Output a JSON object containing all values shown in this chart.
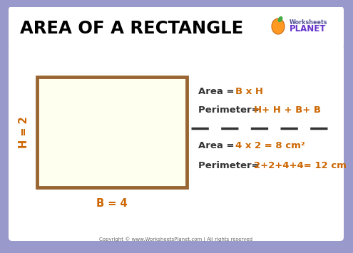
{
  "title": "AREA OF A RECTANGLE",
  "bg_color": "#9999cc",
  "header_bg": "#ffffff",
  "content_bg": "#ffffff",
  "rect_fill": "#fffff0",
  "rect_edge": "#996633",
  "formula_color": "#cc6600",
  "label_color": "#cc6600",
  "text_color": "#333333",
  "footer_text": "Copyright © www.WorksheetsPlanet.com | All rights reserved",
  "area_formula": "B x H",
  "perimeter_formula": "H+ H + B+ B",
  "area_example": "4 x 2 = 8 cm²",
  "perimeter_example": "2+2+4+4= 12 cm",
  "h_label": "H = 2",
  "b_label": "B = 4",
  "logo_text1": "Worksheets",
  "logo_text2": "PLANET",
  "logo_color1": "#555599",
  "logo_color2": "#6633cc"
}
